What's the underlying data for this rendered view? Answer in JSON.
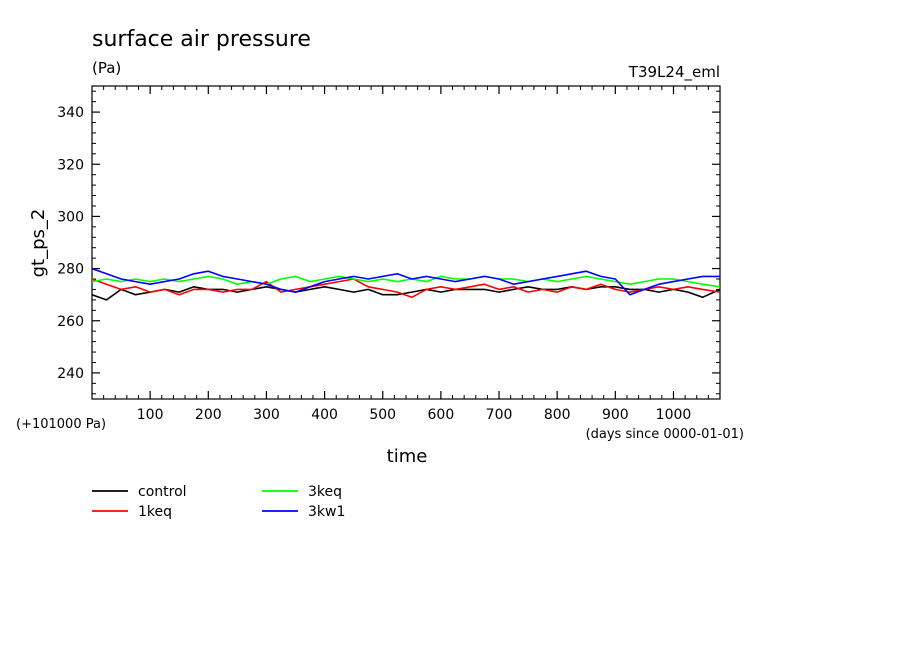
{
  "chart_data": {
    "type": "line",
    "title": "surface air pressure",
    "units": "(Pa)",
    "experiment": "T39L24_eml",
    "ylabel": "gt_ps_2",
    "xlabel": "time",
    "x_offset_note": "(+101000 Pa)",
    "x_units_note": "(days since 0000-01-01)",
    "xlim": [
      0,
      1080
    ],
    "ylim": [
      230,
      350
    ],
    "x_ticks": [
      100,
      200,
      300,
      400,
      500,
      600,
      700,
      800,
      900,
      1000
    ],
    "y_ticks": [
      240,
      260,
      280,
      300,
      320,
      340
    ],
    "legend_placement": "bottom",
    "x": [
      0,
      25,
      50,
      75,
      100,
      125,
      150,
      175,
      200,
      225,
      250,
      275,
      300,
      325,
      350,
      375,
      400,
      425,
      450,
      475,
      500,
      525,
      550,
      575,
      600,
      625,
      650,
      675,
      700,
      725,
      750,
      775,
      800,
      825,
      850,
      875,
      900,
      925,
      950,
      975,
      1000,
      1025,
      1050,
      1080
    ],
    "series": [
      {
        "name": "control",
        "color": "#000000",
        "values": [
          270,
          268,
          272,
          270,
          271,
          272,
          271,
          273,
          272,
          272,
          271,
          272,
          273,
          272,
          271,
          272,
          273,
          272,
          271,
          272,
          270,
          270,
          271,
          272,
          271,
          272,
          272,
          272,
          271,
          272,
          273,
          272,
          272,
          273,
          272,
          273,
          273,
          272,
          272,
          271,
          272,
          271,
          269,
          272
        ]
      },
      {
        "name": "1keq",
        "color": "#ff0000",
        "values": [
          276,
          274,
          272,
          273,
          271,
          272,
          270,
          272,
          272,
          271,
          272,
          272,
          275,
          271,
          272,
          273,
          274,
          275,
          276,
          273,
          272,
          271,
          269,
          272,
          273,
          272,
          273,
          274,
          272,
          273,
          271,
          272,
          271,
          273,
          272,
          274,
          272,
          271,
          272,
          273,
          272,
          273,
          272,
          271
        ]
      },
      {
        "name": "3keq",
        "color": "#00ff00",
        "values": [
          275,
          276,
          275,
          276,
          275,
          276,
          275,
          276,
          277,
          276,
          274,
          275,
          274,
          276,
          277,
          275,
          276,
          277,
          276,
          275,
          276,
          275,
          276,
          275,
          277,
          276,
          276,
          277,
          276,
          276,
          275,
          276,
          275,
          276,
          277,
          276,
          275,
          274,
          275,
          276,
          276,
          275,
          274,
          273
        ]
      },
      {
        "name": "3kw1",
        "color": "#0000ff",
        "values": [
          280,
          278,
          276,
          275,
          274,
          275,
          276,
          278,
          279,
          277,
          276,
          275,
          274,
          272,
          271,
          273,
          275,
          276,
          277,
          276,
          277,
          278,
          276,
          277,
          276,
          275,
          276,
          277,
          276,
          274,
          275,
          276,
          277,
          278,
          279,
          277,
          276,
          270,
          272,
          274,
          275,
          276,
          277,
          277
        ]
      }
    ]
  }
}
